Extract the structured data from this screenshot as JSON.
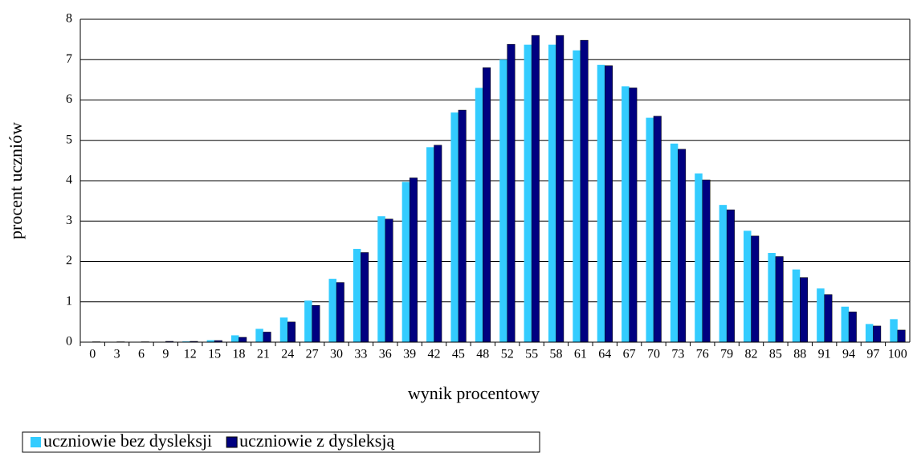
{
  "chart_data": {
    "type": "bar",
    "x_label": "wynik procentowy",
    "y_label": "procent uczniów",
    "categories": [
      "0",
      "3",
      "6",
      "9",
      "12",
      "15",
      "18",
      "21",
      "24",
      "27",
      "30",
      "33",
      "36",
      "39",
      "42",
      "45",
      "48",
      "52",
      "55",
      "58",
      "61",
      "64",
      "67",
      "70",
      "73",
      "76",
      "79",
      "82",
      "85",
      "88",
      "91",
      "94",
      "97",
      "100"
    ],
    "series": [
      {
        "name": "uczniowie bez dysleksji",
        "color": "#33ccff",
        "values": [
          0.01,
          0.01,
          0.01,
          0.01,
          0.02,
          0.05,
          0.17,
          0.33,
          0.61,
          1.03,
          1.57,
          2.31,
          3.12,
          3.97,
          4.83,
          5.69,
          6.3,
          7.0,
          7.37,
          7.37,
          7.23,
          6.87,
          6.34,
          5.56,
          4.92,
          4.18,
          3.4,
          2.76,
          2.21,
          1.8,
          1.33,
          0.88,
          0.45,
          0.57
        ]
      },
      {
        "name": "uczniowie z dysleksją",
        "color": "#000080",
        "values": [
          0.01,
          0.01,
          0.01,
          0.02,
          0.02,
          0.04,
          0.12,
          0.25,
          0.5,
          0.91,
          1.48,
          2.22,
          3.05,
          4.07,
          4.88,
          5.75,
          6.8,
          7.38,
          7.6,
          7.6,
          7.48,
          6.85,
          6.3,
          5.6,
          4.78,
          4.02,
          3.28,
          2.63,
          2.12,
          1.6,
          1.18,
          0.75,
          0.4,
          0.3
        ]
      }
    ],
    "ylim": [
      0,
      8
    ],
    "yticks": [
      0,
      1,
      2,
      3,
      4,
      5,
      6,
      7,
      8
    ],
    "grid": true,
    "legend": "bottom-left"
  }
}
